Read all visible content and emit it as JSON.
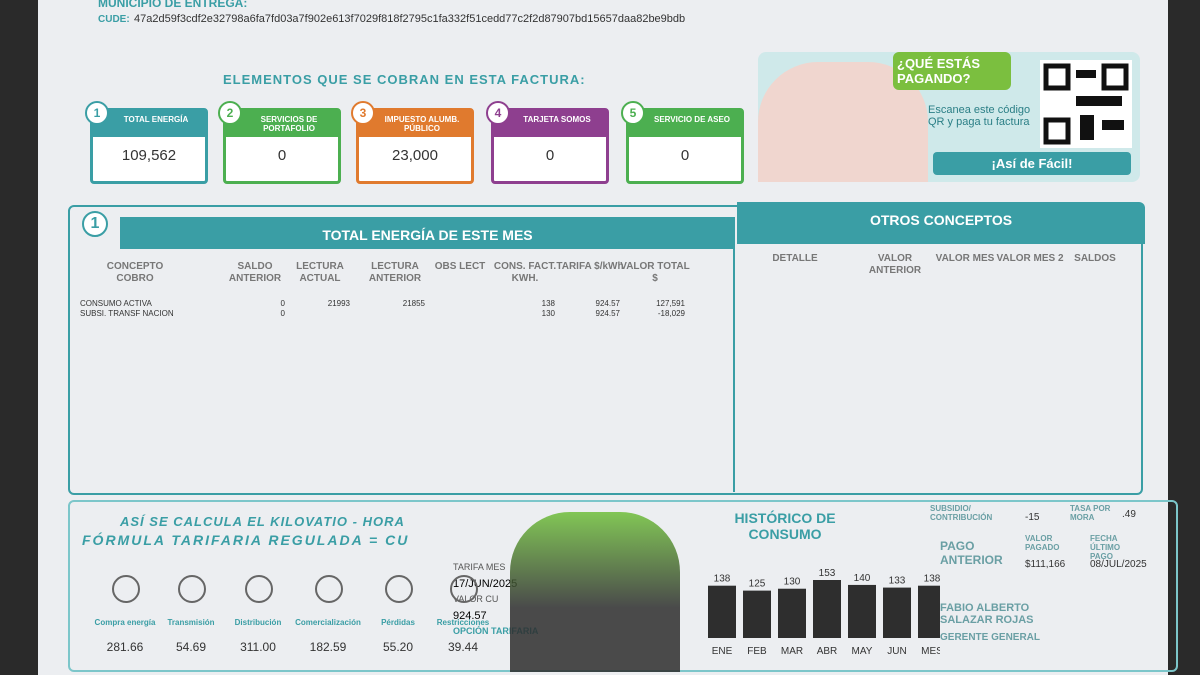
{
  "header": {
    "municipio": "MUNICIPIO DE ENTREGA:",
    "cude_label": "CUDE:",
    "cude": "47a2d59f3cdf2e32798a6fa7fd03a7f902e613f7029f818f2795c1fa332f51cedd77c2f2d87907bd15657daa82be9bdb"
  },
  "charges": {
    "title": "ELEMENTOS QUE SE COBRAN EN ESTA FACTURA:",
    "items": [
      {
        "number": "1",
        "label": "TOTAL ENERGÍA",
        "value": "109,562",
        "color": "#3a9ea5"
      },
      {
        "number": "2",
        "label": "SERVICIOS DE PORTAFOLIO",
        "value": "0",
        "color": "#4caf50"
      },
      {
        "number": "3",
        "label": "IMPUESTO ALUMB. PÚBLICO",
        "value": "23,000",
        "color": "#e07a2e"
      },
      {
        "number": "4",
        "label": "TARJETA SOMOS",
        "value": "0",
        "color": "#8e3f8f"
      },
      {
        "number": "5",
        "label": "SERVICIO DE ASEO",
        "value": "0",
        "color": "#4caf50"
      }
    ]
  },
  "promo": {
    "question": "¿QUÉ ESTÁS PAGANDO?",
    "text": "Escanea este código QR y paga tu factura",
    "tagline": "¡Así de Fácil!"
  },
  "energy": {
    "badge": "1",
    "title": "TOTAL ENERGÍA DE ESTE MES",
    "columns": [
      "CONCEPTO COBRO",
      "SALDO ANTERIOR",
      "LECTURA ACTUAL",
      "LECTURA ANTERIOR",
      "OBS LECT",
      "CONS. FACT. KWH.",
      "TARIFA $/kWh",
      "VALOR TOTAL $"
    ],
    "rows": [
      [
        "CONSUMO ACTIVA",
        "0",
        "21993",
        "21855",
        null,
        "138",
        "924.57",
        "127,591"
      ],
      [
        "SUBSI. TRANSF NACION",
        "0",
        null,
        null,
        null,
        "130",
        "924.57",
        "-18,029"
      ]
    ]
  },
  "other": {
    "title": "OTROS CONCEPTOS",
    "columns": [
      "DETALLE",
      "VALOR ANTERIOR",
      "VALOR MES",
      "VALOR MES 2",
      "SALDOS"
    ]
  },
  "formula": {
    "title": "ASÍ SE CALCULA EL KILOVATIO - HORA",
    "subtitle": "FÓRMULA TARIFARIA REGULADA = CU",
    "components": [
      {
        "label": "Compra energía",
        "value": "281.66"
      },
      {
        "label": "Transmisión",
        "value": "54.69"
      },
      {
        "label": "Distribución",
        "value": "311.00"
      },
      {
        "label": "Comercialización",
        "value": "182.59"
      },
      {
        "label": "Pérdidas",
        "value": "55.20"
      },
      {
        "label": "Restricciones",
        "value": "39.44"
      }
    ],
    "tarifa_label": "TARIFA MES",
    "tarifa_date": "17/JUN/2025",
    "cu_label": "VALOR CU",
    "cu_value": "924.57",
    "option": "OPCIÓN TARIFARIA"
  },
  "history": {
    "type": "bar",
    "title": "HISTÓRICO DE CONSUMO",
    "categories": [
      "ENE",
      "FEB",
      "MAR",
      "ABR",
      "MAY",
      "JUN",
      "MES"
    ],
    "values": [
      138,
      125,
      130,
      153,
      140,
      133,
      138
    ],
    "color": "#2e2e2e"
  },
  "summary": {
    "subsidy_label": "SUBSIDIO/ CONTRIBUCIÓN",
    "subsidy": "-15",
    "mora_label": "TASA POR MORA",
    "mora": ".49",
    "prev_label": "PAGO ANTERIOR",
    "paid_label": "VALOR PAGADO",
    "paid": "$111,166",
    "date_label": "FECHA ÚLTIMO PAGO",
    "date": "08/JUL/2025",
    "manager": "FABIO ALBERTO SALAZAR ROJAS",
    "manager_title": "GERENTE GENERAL"
  }
}
